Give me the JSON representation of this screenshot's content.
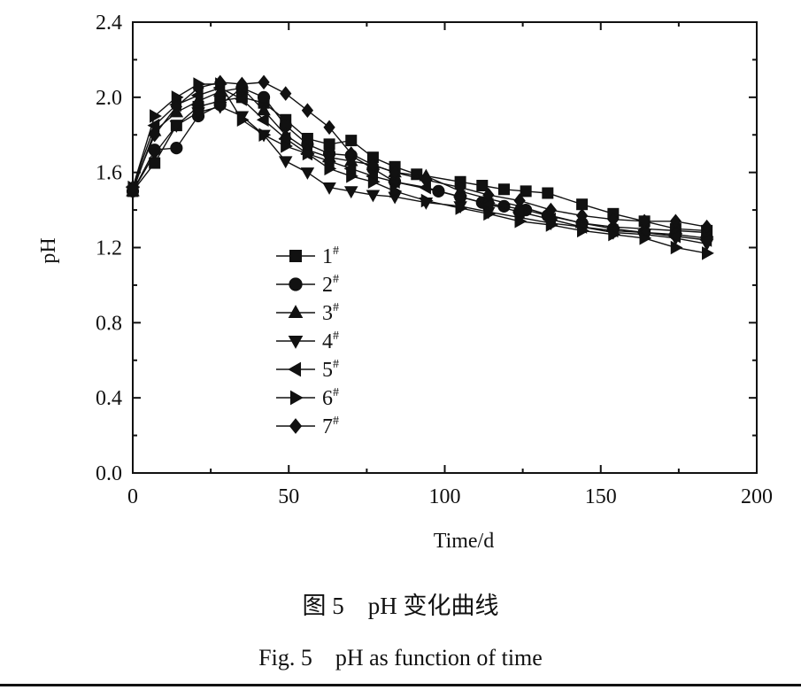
{
  "captions": {
    "cn": "图 5    pH 变化曲线",
    "en": "Fig. 5    pH as function of time"
  },
  "chart_data": {
    "type": "line",
    "title": "",
    "xlabel": "Time/d",
    "ylabel": "pH",
    "xlim": [
      0,
      200
    ],
    "ylim": [
      0.0,
      2.4
    ],
    "xticks": [
      0,
      50,
      100,
      150,
      200
    ],
    "yticks": [
      "0.0",
      "0.4",
      "0.8",
      "1.2",
      "1.6",
      "2.0",
      "2.4"
    ],
    "grid": false,
    "legend_position": "center-left",
    "series": [
      {
        "name": "1",
        "sup": "#",
        "marker": "square",
        "x": [
          0,
          7,
          14,
          21,
          28,
          35,
          42,
          49,
          56,
          63,
          70,
          77,
          84,
          91,
          105,
          112,
          119,
          126,
          133,
          144,
          154,
          164,
          174,
          184
        ],
        "y": [
          1.5,
          1.65,
          1.85,
          1.95,
          1.98,
          2.0,
          1.97,
          1.88,
          1.78,
          1.75,
          1.77,
          1.68,
          1.63,
          1.59,
          1.55,
          1.53,
          1.51,
          1.5,
          1.49,
          1.43,
          1.38,
          1.34,
          1.3,
          1.29
        ]
      },
      {
        "name": "2",
        "sup": "#",
        "marker": "circle",
        "x": [
          0,
          7,
          14,
          21,
          28,
          35,
          42,
          49,
          56,
          63,
          70,
          77,
          84,
          98,
          105,
          112,
          119,
          126,
          133,
          144,
          154,
          164,
          174,
          184
        ],
        "y": [
          1.5,
          1.72,
          1.73,
          1.9,
          1.96,
          2.05,
          2.0,
          1.85,
          1.75,
          1.7,
          1.69,
          1.62,
          1.55,
          1.5,
          1.47,
          1.44,
          1.42,
          1.4,
          1.37,
          1.33,
          1.3,
          1.28,
          1.27,
          1.25
        ]
      },
      {
        "name": "3",
        "sup": "#",
        "marker": "triangle-up",
        "x": [
          0,
          7,
          14,
          21,
          28,
          35,
          42,
          49,
          56,
          63,
          70,
          77,
          84,
          94,
          105,
          114,
          124,
          134,
          144,
          154,
          164,
          174,
          184
        ],
        "y": [
          1.5,
          1.82,
          1.92,
          1.98,
          2.03,
          2.05,
          1.93,
          1.8,
          1.72,
          1.68,
          1.66,
          1.64,
          1.6,
          1.58,
          1.5,
          1.46,
          1.42,
          1.37,
          1.33,
          1.31,
          1.3,
          1.29,
          1.28
        ]
      },
      {
        "name": "4",
        "sup": "#",
        "marker": "triangle-down",
        "x": [
          0,
          7,
          14,
          21,
          28,
          35,
          42,
          49,
          56,
          63,
          70,
          77,
          84,
          94,
          105,
          114,
          124,
          134,
          144,
          154,
          164,
          174,
          184
        ],
        "y": [
          1.5,
          1.7,
          1.85,
          1.92,
          1.95,
          1.9,
          1.8,
          1.66,
          1.6,
          1.52,
          1.5,
          1.48,
          1.47,
          1.44,
          1.42,
          1.39,
          1.36,
          1.33,
          1.31,
          1.28,
          1.27,
          1.25,
          1.22
        ]
      },
      {
        "name": "5",
        "sup": "#",
        "marker": "triangle-left",
        "x": [
          0,
          7,
          14,
          21,
          28,
          35,
          42,
          49,
          56,
          63,
          70,
          77,
          84,
          94,
          105,
          114,
          124,
          134,
          144,
          154,
          164,
          174,
          184
        ],
        "y": [
          1.52,
          1.85,
          1.96,
          2.01,
          2.05,
          1.99,
          1.88,
          1.78,
          1.7,
          1.66,
          1.62,
          1.58,
          1.55,
          1.52,
          1.47,
          1.43,
          1.39,
          1.35,
          1.31,
          1.29,
          1.28,
          1.26,
          1.24
        ]
      },
      {
        "name": "6",
        "sup": "#",
        "marker": "triangle-right",
        "x": [
          0,
          7,
          14,
          21,
          28,
          35,
          42,
          49,
          56,
          63,
          70,
          77,
          84,
          94,
          105,
          114,
          124,
          134,
          144,
          154,
          164,
          174,
          184
        ],
        "y": [
          1.52,
          1.9,
          2.0,
          2.07,
          2.07,
          1.88,
          1.8,
          1.74,
          1.7,
          1.62,
          1.58,
          1.55,
          1.5,
          1.45,
          1.41,
          1.38,
          1.34,
          1.32,
          1.29,
          1.27,
          1.25,
          1.2,
          1.17
        ]
      },
      {
        "name": "7",
        "sup": "#",
        "marker": "diamond",
        "x": [
          0,
          7,
          14,
          21,
          28,
          35,
          42,
          49,
          56,
          63,
          70,
          77,
          84,
          94,
          105,
          114,
          124,
          134,
          144,
          154,
          164,
          174,
          184
        ],
        "y": [
          1.52,
          1.8,
          1.95,
          2.05,
          2.08,
          2.07,
          2.08,
          2.02,
          1.93,
          1.84,
          1.7,
          1.64,
          1.6,
          1.56,
          1.52,
          1.48,
          1.45,
          1.4,
          1.37,
          1.35,
          1.34,
          1.34,
          1.31
        ]
      }
    ]
  }
}
